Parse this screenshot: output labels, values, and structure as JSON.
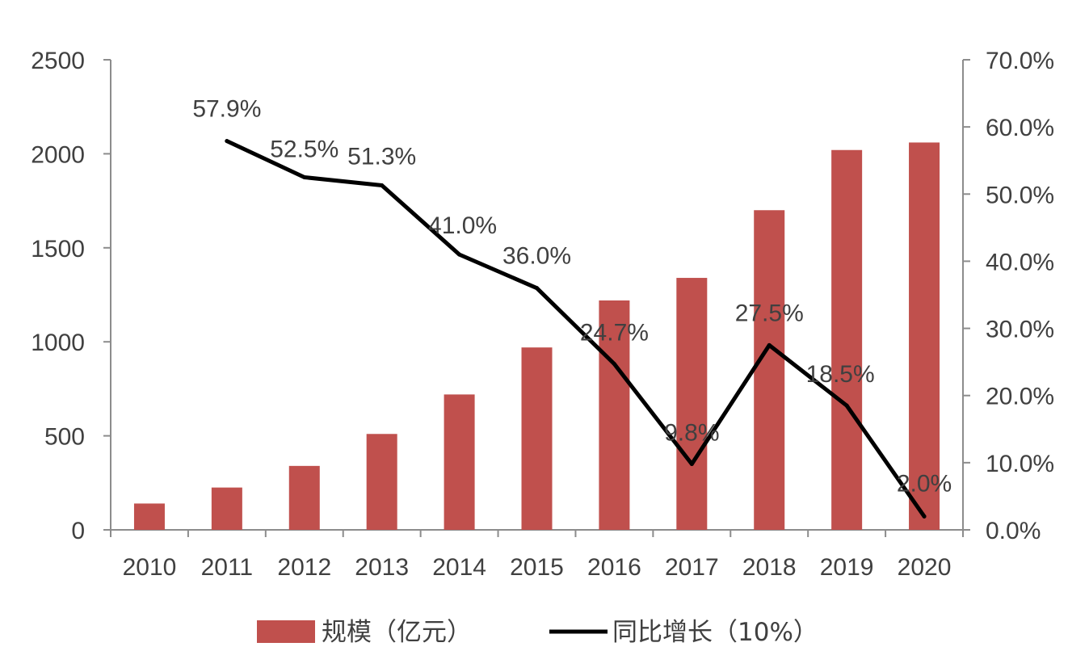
{
  "chart_data": {
    "type": "bar",
    "categories": [
      "2010",
      "2011",
      "2012",
      "2013",
      "2014",
      "2015",
      "2016",
      "2017",
      "2018",
      "2019",
      "2020"
    ],
    "series": [
      {
        "name": "规模（亿元）",
        "type": "bar",
        "axis": "left",
        "color": "#c0504d",
        "values": [
          140,
          225,
          340,
          510,
          720,
          970,
          1220,
          1340,
          1700,
          2020,
          2060
        ]
      },
      {
        "name": "同比增长（10%）",
        "type": "line",
        "axis": "right",
        "color": "#000000",
        "values": [
          null,
          57.9,
          52.5,
          51.3,
          41.0,
          36.0,
          24.7,
          9.8,
          27.5,
          18.5,
          2.0
        ],
        "data_labels": [
          "",
          "57.9%",
          "52.5%",
          "51.3%",
          "41.0%",
          "36.0%",
          "24.7%",
          "9.8%",
          "27.5%",
          "18.5%",
          "2.0%"
        ]
      }
    ],
    "y_left": {
      "ylim": [
        0,
        2500
      ],
      "ticks": [
        "0",
        "500",
        "1000",
        "1500",
        "2000",
        "2500"
      ]
    },
    "y_right": {
      "ylim": [
        0,
        70
      ],
      "ticks": [
        "0.0%",
        "10.0%",
        "20.0%",
        "30.0%",
        "40.0%",
        "50.0%",
        "60.0%",
        "70.0%"
      ]
    },
    "title": "",
    "xlabel": "",
    "ylabel": "",
    "grid": false,
    "legend": "bottom"
  }
}
